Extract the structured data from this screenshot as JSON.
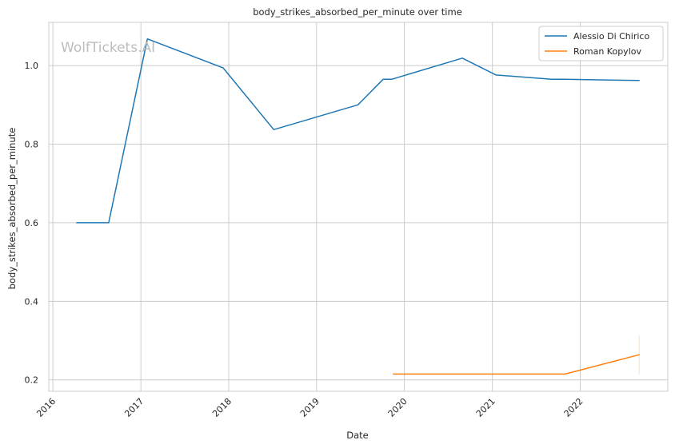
{
  "chart_data": {
    "type": "line",
    "title": "body_strikes_absorbed_per_minute over time",
    "xlabel": "Date",
    "ylabel": "body_strikes_absorbed_per_minute",
    "watermark": "WolfTickets.AI",
    "x_axis_type": "date",
    "xlim": [
      "2015-12-15",
      "2022-12-31"
    ],
    "ylim": [
      0.171,
      1.11
    ],
    "x_ticks": [
      "2016",
      "2017",
      "2018",
      "2019",
      "2020",
      "2021",
      "2022"
    ],
    "y_ticks": [
      0.2,
      0.4,
      0.6,
      0.8,
      1.0
    ],
    "y_tick_labels": [
      "0.2",
      "0.4",
      "0.6",
      "0.8",
      "1.0"
    ],
    "grid": true,
    "legend_position": "top-right",
    "colors": {
      "grid": "#cccccc",
      "spine": "#cccccc",
      "background": "#ffffff"
    },
    "series": [
      {
        "name": "Alessio Di Chirico",
        "color": "#1f77b4",
        "points": [
          {
            "x": "2016-04-09",
            "y": 0.6
          },
          {
            "x": "2016-08-20",
            "y": 0.6
          },
          {
            "x": "2017-01-28",
            "y": 1.068
          },
          {
            "x": "2017-12-09",
            "y": 0.994
          },
          {
            "x": "2018-07-07",
            "y": 0.837
          },
          {
            "x": "2019-06-22",
            "y": 0.9
          },
          {
            "x": "2019-10-05",
            "y": 0.965
          },
          {
            "x": "2019-11-09",
            "y": 0.965
          },
          {
            "x": "2020-08-29",
            "y": 1.019
          },
          {
            "x": "2021-01-16",
            "y": 0.976
          },
          {
            "x": "2021-09-04",
            "y": 0.965
          },
          {
            "x": "2021-10-30",
            "y": 0.965
          },
          {
            "x": "2022-09-03",
            "y": 0.962
          }
        ]
      },
      {
        "name": "Roman Kopylov",
        "color": "#ff7f0e",
        "points": [
          {
            "x": "2019-11-16",
            "y": 0.215
          },
          {
            "x": "2021-10-30",
            "y": 0.215
          },
          {
            "x": "2022-09-03",
            "y": 0.264
          }
        ],
        "error_band": {
          "x": "2022-09-03",
          "low": 0.214,
          "high": 0.314
        }
      }
    ]
  }
}
